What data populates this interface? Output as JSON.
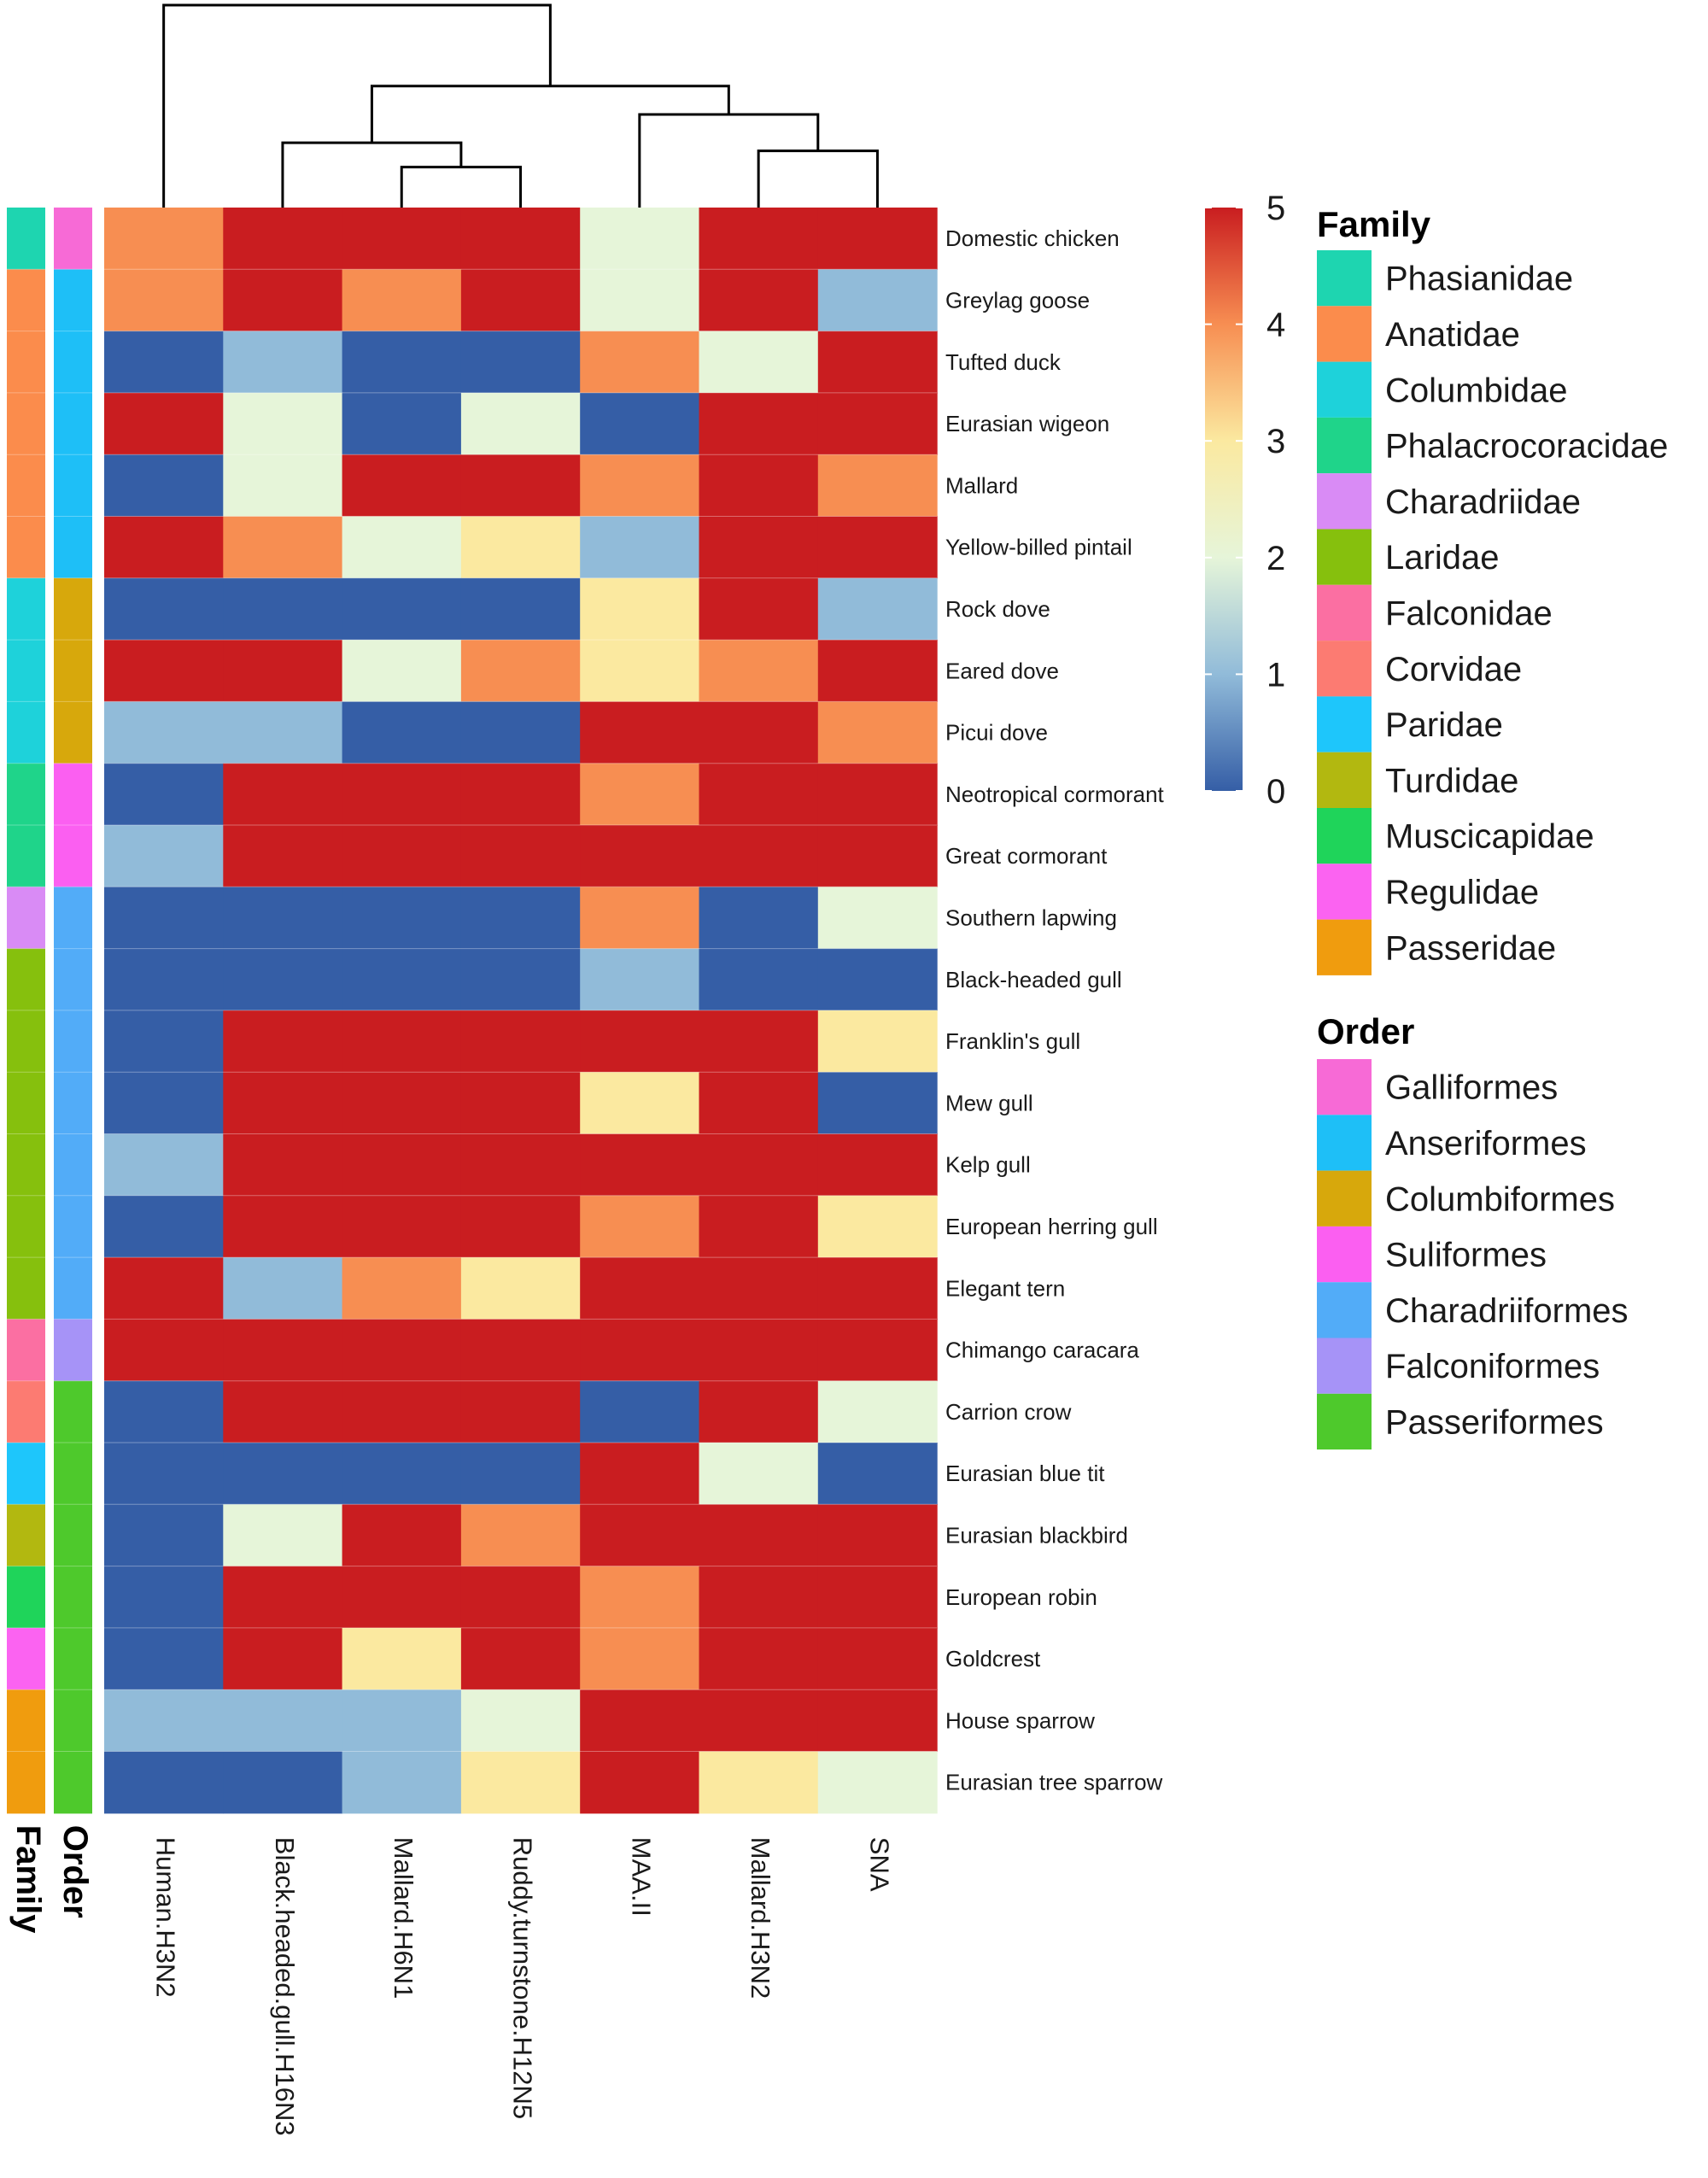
{
  "chart_data": {
    "type": "heatmap",
    "title": "",
    "columns": [
      "Human.H3N2",
      "Black.headed.gull.H16N3",
      "Mallard.H6N1",
      "Ruddy.turnstone.H12N5",
      "MAA.II",
      "Mallard.H3N2",
      "SNA"
    ],
    "rows": [
      "Domestic chicken",
      "Greylag goose",
      "Tufted duck",
      "Eurasian wigeon",
      "Mallard",
      "Yellow-billed pintail",
      "Rock dove",
      "Eared dove",
      "Picui dove",
      "Neotropical cormorant",
      "Great cormorant",
      "Southern lapwing",
      "Black-headed gull",
      "Franklin's gull",
      "Mew gull",
      "Kelp gull",
      "European herring gull",
      "Elegant tern",
      "Chimango caracara",
      "Carrion crow",
      "Eurasian blue tit",
      "Eurasian blackbird",
      "European robin",
      "Goldcrest",
      "House sparrow",
      "Eurasian tree sparrow"
    ],
    "values": [
      [
        4,
        5,
        5,
        5,
        2,
        5,
        5
      ],
      [
        4,
        5,
        4,
        5,
        2,
        5,
        1
      ],
      [
        0,
        1,
        0,
        0,
        4,
        2,
        5
      ],
      [
        5,
        2,
        0,
        2,
        0,
        5,
        5
      ],
      [
        0,
        2,
        5,
        5,
        4,
        5,
        4
      ],
      [
        5,
        4,
        2,
        3,
        1,
        5,
        5
      ],
      [
        0,
        0,
        0,
        0,
        3,
        5,
        1
      ],
      [
        5,
        5,
        2,
        4,
        3,
        4,
        5
      ],
      [
        1,
        1,
        0,
        0,
        5,
        5,
        4
      ],
      [
        0,
        5,
        5,
        5,
        4,
        5,
        5
      ],
      [
        1,
        5,
        5,
        5,
        5,
        5,
        5
      ],
      [
        0,
        0,
        0,
        0,
        4,
        0,
        2
      ],
      [
        0,
        0,
        0,
        0,
        1,
        0,
        0
      ],
      [
        0,
        5,
        5,
        5,
        5,
        5,
        3
      ],
      [
        0,
        5,
        5,
        5,
        3,
        5,
        0
      ],
      [
        1,
        5,
        5,
        5,
        5,
        5,
        5
      ],
      [
        0,
        5,
        5,
        5,
        4,
        5,
        3
      ],
      [
        5,
        1,
        4,
        3,
        5,
        5,
        5
      ],
      [
        5,
        5,
        5,
        5,
        5,
        5,
        5
      ],
      [
        0,
        5,
        5,
        5,
        0,
        5,
        2
      ],
      [
        0,
        0,
        0,
        0,
        5,
        2,
        0
      ],
      [
        0,
        2,
        5,
        4,
        5,
        5,
        5
      ],
      [
        0,
        5,
        5,
        5,
        4,
        5,
        5
      ],
      [
        0,
        5,
        3,
        5,
        4,
        5,
        5
      ],
      [
        1,
        1,
        1,
        2,
        5,
        5,
        5
      ],
      [
        0,
        0,
        1,
        3,
        5,
        3,
        2
      ]
    ],
    "value_range": [
      0,
      5
    ],
    "colorbar": {
      "ticks": [
        5,
        4,
        3,
        2,
        1,
        0
      ],
      "colors": {
        "0": "#355ea6",
        "1": "#91bbd9",
        "2": "#e6f5d9",
        "3": "#fbe9a0",
        "4": "#f78e52",
        "5": "#c91d20"
      }
    },
    "annotation_tracks": {
      "labels": {
        "family": "Family",
        "order": "Order"
      },
      "family": [
        "Phasianidae",
        "Anatidae",
        "Anatidae",
        "Anatidae",
        "Anatidae",
        "Anatidae",
        "Columbidae",
        "Columbidae",
        "Columbidae",
        "Phalacrocoracidae",
        "Phalacrocoracidae",
        "Charadriidae",
        "Laridae",
        "Laridae",
        "Laridae",
        "Laridae",
        "Laridae",
        "Laridae",
        "Falconidae",
        "Corvidae",
        "Paridae",
        "Turdidae",
        "Muscicapidae",
        "Regulidae",
        "Passeridae",
        "Passeridae"
      ],
      "order": [
        "Galliformes",
        "Anseriformes",
        "Anseriformes",
        "Anseriformes",
        "Anseriformes",
        "Anseriformes",
        "Columbiformes",
        "Columbiformes",
        "Columbiformes",
        "Suliformes",
        "Suliformes",
        "Charadriiformes",
        "Charadriiformes",
        "Charadriiformes",
        "Charadriiformes",
        "Charadriiformes",
        "Charadriiformes",
        "Charadriiformes",
        "Falconiformes",
        "Passeriformes",
        "Passeriformes",
        "Passeriformes",
        "Passeriformes",
        "Passeriformes",
        "Passeriformes",
        "Passeriformes"
      ]
    },
    "legend": {
      "family_title": "Family",
      "family": [
        {
          "name": "Phasianidae",
          "color": "#1ed5b0"
        },
        {
          "name": "Anatidae",
          "color": "#fb8c4c"
        },
        {
          "name": "Columbidae",
          "color": "#1ed2da"
        },
        {
          "name": "Phalacrocoracidae",
          "color": "#1fd48a"
        },
        {
          "name": "Charadriidae",
          "color": "#d98bf5"
        },
        {
          "name": "Laridae",
          "color": "#86c00d"
        },
        {
          "name": "Falconidae",
          "color": "#fb6fa2"
        },
        {
          "name": "Corvidae",
          "color": "#fc7b72"
        },
        {
          "name": "Paridae",
          "color": "#1ec6fb"
        },
        {
          "name": "Turdidae",
          "color": "#b2b810"
        },
        {
          "name": "Muscicapidae",
          "color": "#1fd45a"
        },
        {
          "name": "Regulidae",
          "color": "#fb63f1"
        },
        {
          "name": "Passeridae",
          "color": "#f09c0e"
        }
      ],
      "order_title": "Order",
      "order": [
        {
          "name": "Galliformes",
          "color": "#f76ad6"
        },
        {
          "name": "Anseriformes",
          "color": "#1ebff7"
        },
        {
          "name": "Columbiformes",
          "color": "#d7a80c"
        },
        {
          "name": "Suliformes",
          "color": "#fb5ff1"
        },
        {
          "name": "Charadriiformes",
          "color": "#52acf8"
        },
        {
          "name": "Falconiformes",
          "color": "#a693f7"
        },
        {
          "name": "Passeriformes",
          "color": "#4ec92c"
        }
      ]
    },
    "dendrogram": {
      "leaf_order": [
        "Human.H3N2",
        "Black.headed.gull.H16N3",
        "Mallard.H6N1",
        "Ruddy.turnstone.H12N5",
        "MAA.II",
        "Mallard.H3N2",
        "SNA"
      ],
      "merges": [
        {
          "a": 2,
          "b": 3,
          "height": 1.0
        },
        {
          "a": 1,
          "b": "m0",
          "height": 1.6
        },
        {
          "a": 5,
          "b": 6,
          "height": 1.4
        },
        {
          "a": 4,
          "b": "m2",
          "height": 2.3
        },
        {
          "a": "m1",
          "b": "m3",
          "height": 3.0
        },
        {
          "a": 0,
          "b": "m4",
          "height": 5.0
        }
      ]
    }
  }
}
